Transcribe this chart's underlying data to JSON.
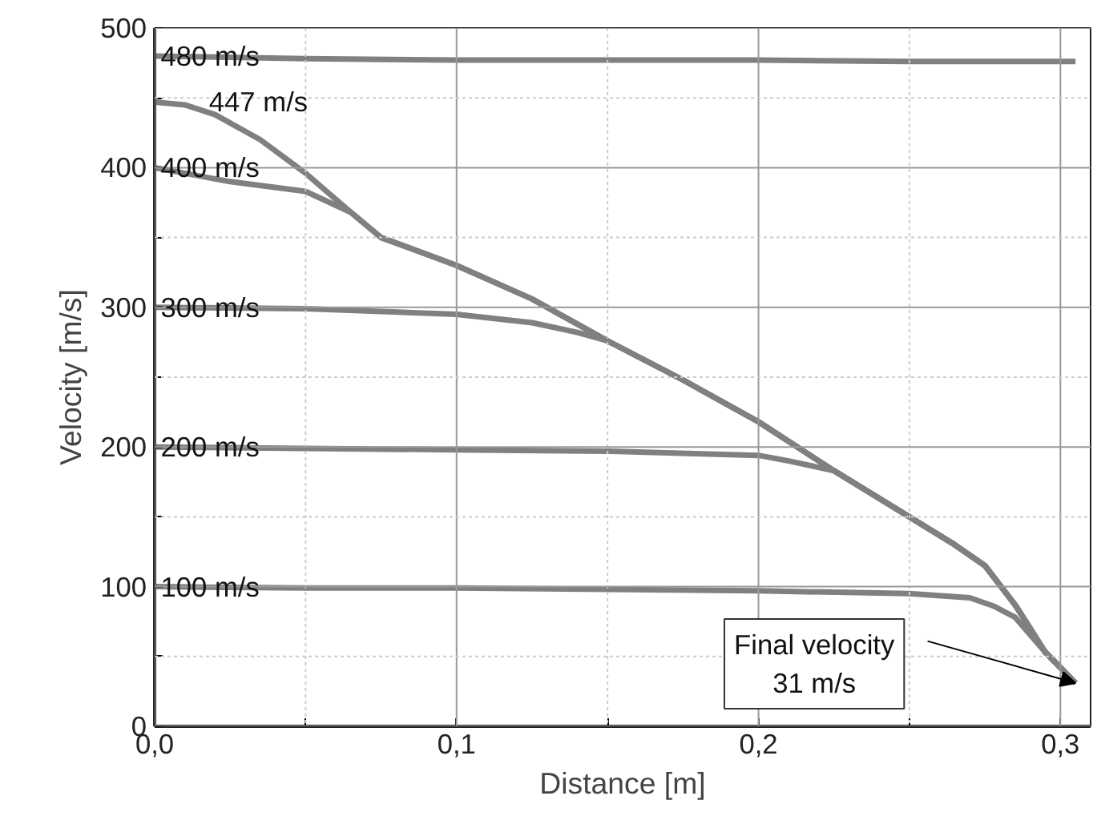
{
  "chart_data": {
    "type": "line",
    "xlabel": "Distance [m]",
    "ylabel": "Velocity [m/s]",
    "xlim": [
      0,
      0.31
    ],
    "ylim": [
      0,
      500
    ],
    "xticks": [
      {
        "value": 0,
        "label": "0,0"
      },
      {
        "value": 0.05,
        "label": null
      },
      {
        "value": 0.1,
        "label": "0,1"
      },
      {
        "value": 0.15,
        "label": null
      },
      {
        "value": 0.2,
        "label": "0,2"
      },
      {
        "value": 0.25,
        "label": null
      },
      {
        "value": 0.3,
        "label": "0,3"
      }
    ],
    "yticks": [
      0,
      {
        "value": 50,
        "label": null
      },
      100,
      {
        "value": 150,
        "label": null
      },
      200,
      {
        "value": 250,
        "label": null
      },
      300,
      {
        "value": 350,
        "label": null
      },
      400,
      {
        "value": 450,
        "label": null
      },
      500
    ],
    "grid": true,
    "marker": "none",
    "line_style": "solid",
    "series": [
      {
        "color": "#808080",
        "x": [
          0,
          0.05,
          0.1,
          0.15,
          0.2,
          0.25,
          0.3,
          0.305
        ],
        "values": [
          480,
          478,
          477,
          477,
          477,
          476,
          476,
          476
        ]
      },
      {
        "color": "#808080",
        "x": [
          0,
          0.01,
          0.02,
          0.035,
          0.05,
          0.065,
          0.075,
          0.1,
          0.125,
          0.15,
          0.175,
          0.2,
          0.225,
          0.25,
          0.265,
          0.275,
          0.285,
          0.295,
          0.305
        ],
        "values": [
          447,
          445,
          438,
          420,
          396,
          368,
          350,
          330,
          306,
          276,
          248,
          218,
          183,
          150,
          130,
          115,
          87,
          53,
          31
        ]
      },
      {
        "color": "#808080",
        "x": [
          0,
          0.025,
          0.05,
          0.065,
          0.075,
          0.1,
          0.125,
          0.15,
          0.175,
          0.2,
          0.225,
          0.25,
          0.265,
          0.275,
          0.285,
          0.295,
          0.305
        ],
        "values": [
          400,
          390,
          383,
          368,
          350,
          330,
          306,
          276,
          248,
          218,
          183,
          150,
          130,
          115,
          87,
          53,
          31
        ]
      },
      {
        "color": "#808080",
        "x": [
          0,
          0.05,
          0.1,
          0.125,
          0.14,
          0.15,
          0.175,
          0.2,
          0.225,
          0.25,
          0.265,
          0.275,
          0.285,
          0.295,
          0.305
        ],
        "values": [
          300,
          299,
          295,
          289,
          282,
          276,
          248,
          218,
          183,
          150,
          130,
          115,
          87,
          53,
          31
        ]
      },
      {
        "color": "#808080",
        "x": [
          0,
          0.05,
          0.1,
          0.15,
          0.2,
          0.21,
          0.225,
          0.25,
          0.265,
          0.275,
          0.285,
          0.295,
          0.305
        ],
        "values": [
          200,
          199,
          198,
          197,
          194,
          190,
          183,
          150,
          130,
          115,
          87,
          53,
          31
        ]
      },
      {
        "color": "#808080",
        "x": [
          0,
          0.05,
          0.1,
          0.15,
          0.2,
          0.25,
          0.27,
          0.278,
          0.285,
          0.295,
          0.305
        ],
        "values": [
          100,
          99,
          99,
          98,
          97,
          95,
          92,
          86,
          78,
          53,
          31
        ]
      }
    ],
    "annotations": [
      {
        "text": "480 m/s",
        "x": 0.002,
        "y": 480
      },
      {
        "text": "447 m/s",
        "x": 0.018,
        "y": 447
      },
      {
        "text": "400 m/s",
        "x": 0.002,
        "y": 400
      },
      {
        "text": "300 m/s",
        "x": 0.002,
        "y": 300
      },
      {
        "text": "200 m/s",
        "x": 0.002,
        "y": 200
      },
      {
        "text": "100 m/s",
        "x": 0.002,
        "y": 100
      },
      {
        "text": "Final velocity\n31 m/s",
        "x": 0.305,
        "y": 31
      }
    ]
  }
}
